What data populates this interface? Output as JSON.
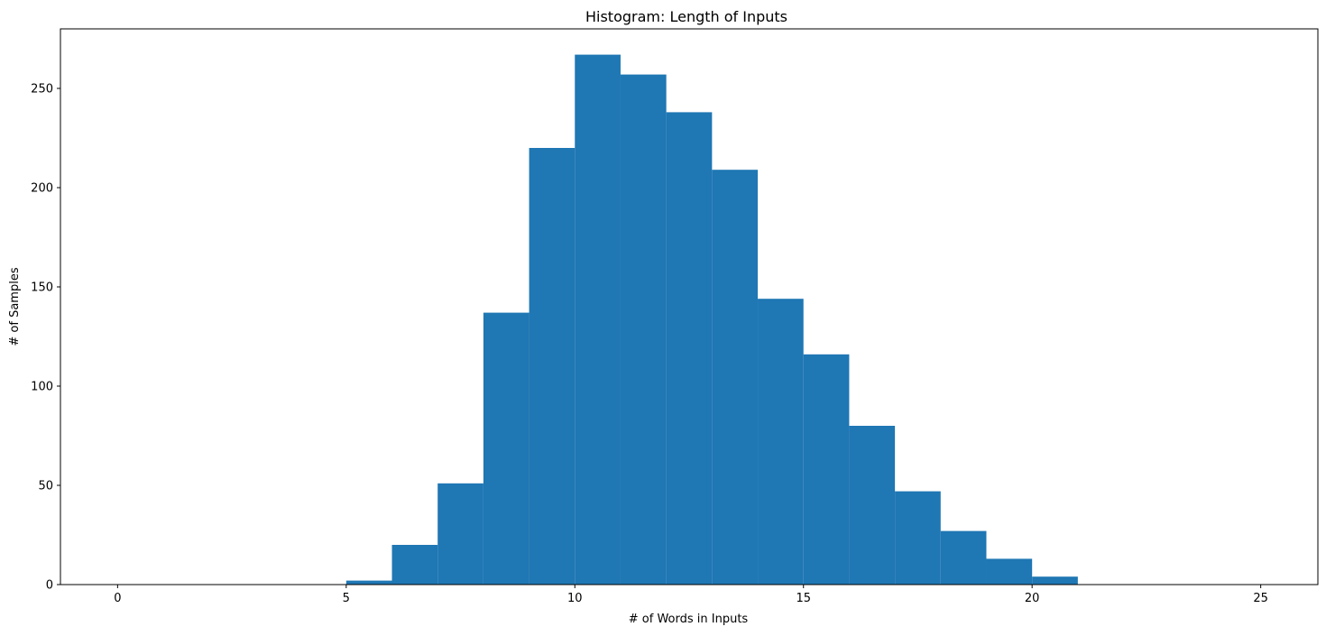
{
  "chart_data": {
    "type": "bar",
    "title": "Histogram: Length of Inputs",
    "xlabel": "# of Words in Inputs",
    "ylabel": "# of Samples",
    "xlim": [
      -1.25,
      26.25
    ],
    "ylim": [
      0,
      280
    ],
    "xticks": [
      0,
      5,
      10,
      15,
      20,
      25
    ],
    "yticks": [
      0,
      50,
      100,
      150,
      200,
      250
    ],
    "grid": false,
    "color": "#1f77b4",
    "bins": [
      {
        "start": 0,
        "end": 1,
        "count": 0
      },
      {
        "start": 1,
        "end": 2,
        "count": 0
      },
      {
        "start": 2,
        "end": 3,
        "count": 0
      },
      {
        "start": 3,
        "end": 4,
        "count": 0
      },
      {
        "start": 4,
        "end": 5,
        "count": 0
      },
      {
        "start": 5,
        "end": 6,
        "count": 2
      },
      {
        "start": 6,
        "end": 7,
        "count": 20
      },
      {
        "start": 7,
        "end": 8,
        "count": 51
      },
      {
        "start": 8,
        "end": 9,
        "count": 137
      },
      {
        "start": 9,
        "end": 10,
        "count": 220
      },
      {
        "start": 10,
        "end": 11,
        "count": 267
      },
      {
        "start": 11,
        "end": 12,
        "count": 257
      },
      {
        "start": 12,
        "end": 13,
        "count": 238
      },
      {
        "start": 13,
        "end": 14,
        "count": 209
      },
      {
        "start": 14,
        "end": 15,
        "count": 144
      },
      {
        "start": 15,
        "end": 16,
        "count": 116
      },
      {
        "start": 16,
        "end": 17,
        "count": 80
      },
      {
        "start": 17,
        "end": 18,
        "count": 47
      },
      {
        "start": 18,
        "end": 19,
        "count": 27
      },
      {
        "start": 19,
        "end": 20,
        "count": 13
      },
      {
        "start": 20,
        "end": 21,
        "count": 4
      },
      {
        "start": 21,
        "end": 22,
        "count": 0
      },
      {
        "start": 22,
        "end": 23,
        "count": 0
      },
      {
        "start": 23,
        "end": 24,
        "count": 0
      },
      {
        "start": 24,
        "end": 25,
        "count": 0
      }
    ]
  }
}
